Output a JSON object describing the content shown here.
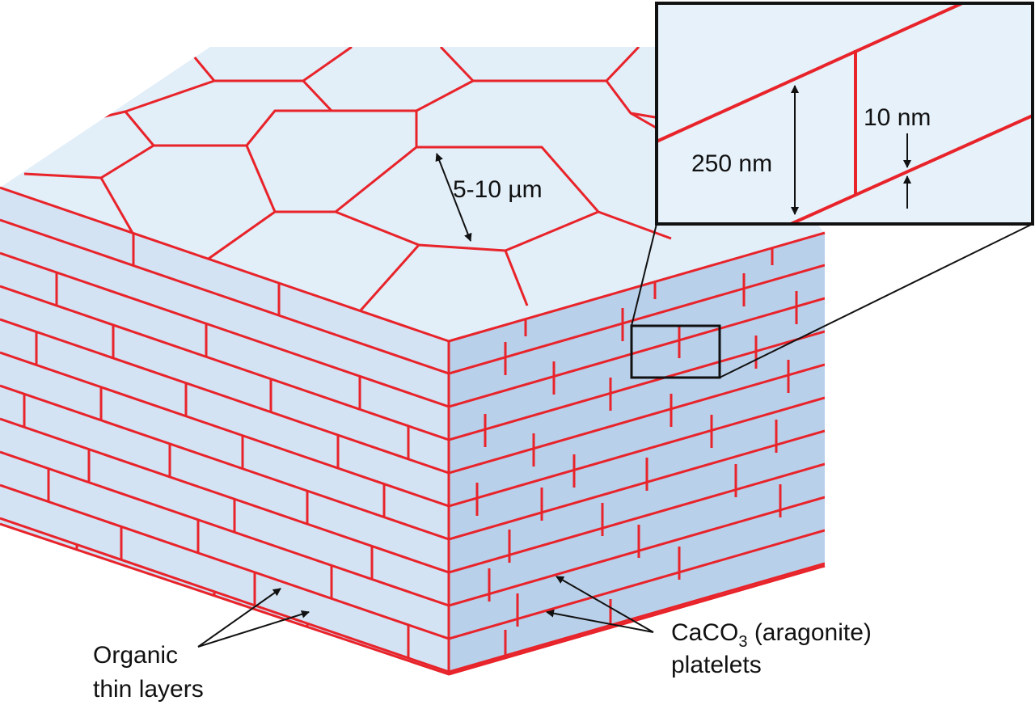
{
  "colors": {
    "boundary": "#e8232a",
    "top_face": "#e2eef8",
    "left_face": "#d3e3f4",
    "right_face": "#b9d0ea",
    "inset_bg": "#e6f1fa",
    "line": "#111111"
  },
  "labels": {
    "grain_size": "5-10 µm",
    "platelet_thickness": "250 nm",
    "organic_thickness": "10 nm",
    "organic_line1": "Organic",
    "organic_line2": "thin layers",
    "caco3_prefix": "CaCO",
    "caco3_sub": "3",
    "caco3_suffix": " (aragonite)",
    "caco3_line2": "platelets"
  }
}
